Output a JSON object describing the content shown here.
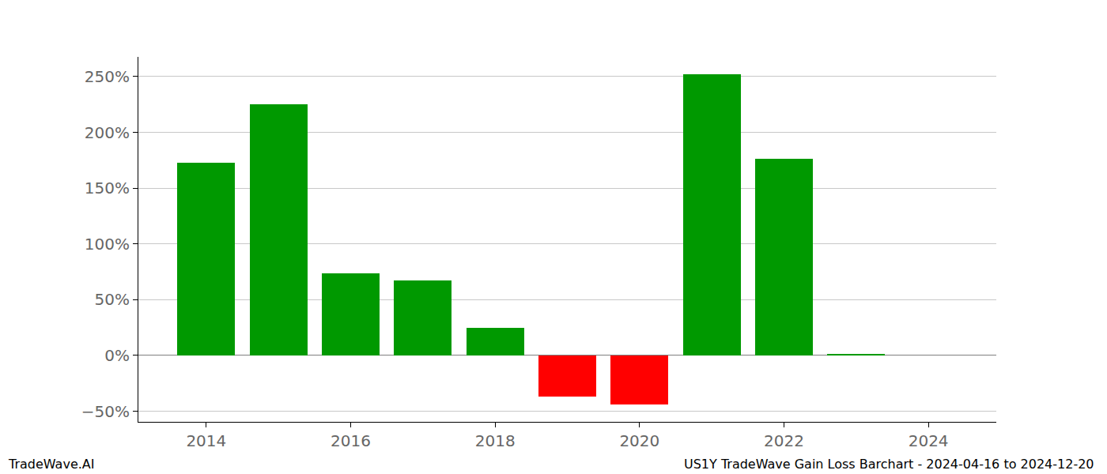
{
  "chart_data": {
    "type": "bar",
    "x": [
      2014,
      2015,
      2016,
      2017,
      2018,
      2019,
      2020,
      2021,
      2022,
      2023,
      2024
    ],
    "values": [
      173,
      225,
      74,
      67,
      25,
      -37,
      -44,
      252,
      176,
      1,
      0
    ],
    "colors": [
      "#009900",
      "#009900",
      "#009900",
      "#009900",
      "#009900",
      "#ff0000",
      "#ff0000",
      "#009900",
      "#009900",
      "#009900",
      "#009900"
    ],
    "xlim": [
      2013.06,
      2024.94
    ],
    "xticks": [
      2014,
      2016,
      2018,
      2020,
      2022,
      2024
    ],
    "ylim": [
      -59.5,
      267.7
    ],
    "yticks": [
      {
        "value": -50,
        "label": "−50%"
      },
      {
        "value": 0,
        "label": "0%"
      },
      {
        "value": 50,
        "label": "50%"
      },
      {
        "value": 100,
        "label": "100%"
      },
      {
        "value": 150,
        "label": "150%"
      },
      {
        "value": 200,
        "label": "200%"
      },
      {
        "value": 250,
        "label": "250%"
      }
    ],
    "grid": true,
    "annotations": [
      "TradeWave.AI",
      "US1Y TradeWave Gain Loss Barchart - 2024-04-16 to 2024-12-20"
    ]
  }
}
